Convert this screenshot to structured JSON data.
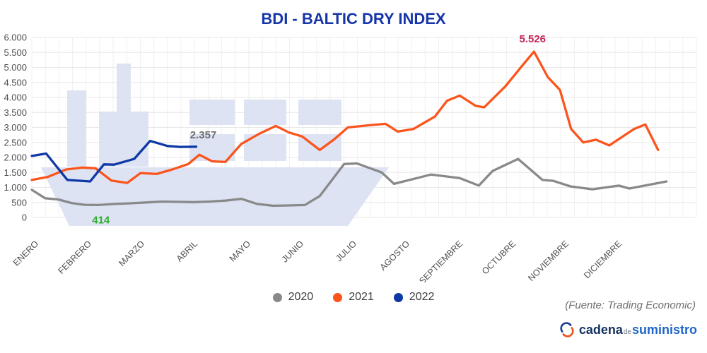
{
  "title": "BDI - BALTIC DRY INDEX",
  "source_note": "(Fuente: Trading Economic)",
  "logo": {
    "part1": "cadena",
    "part2": "de",
    "part3": "suministro"
  },
  "chart_data": {
    "type": "line",
    "title": "BDI - BALTIC DRY INDEX",
    "grid": true,
    "legend_position": "bottom",
    "x_axis": {
      "unit": "month",
      "labels": [
        "ENERO",
        "FEBRERO",
        "MARZO",
        "ABRIL",
        "MAYO",
        "JUNIO",
        "JULIO",
        "AGOSTO",
        "SEPTIEMBRE",
        "OCTUBRE",
        "NOVIEMBRE",
        "DICIEMBRE"
      ]
    },
    "y_axis": {
      "min": 0,
      "max": 6000,
      "step": 500,
      "tick_values": [
        0,
        500,
        1000,
        1500,
        2000,
        2500,
        3000,
        3500,
        4000,
        4500,
        5000,
        5500,
        6000
      ],
      "tick_labels": [
        "0",
        "500",
        "1.000",
        "1.500",
        "2.000",
        "2.500",
        "3.000",
        "3.500",
        "4.000",
        "4.500",
        "5.000",
        "5.500",
        "6.000"
      ]
    },
    "series": [
      {
        "name": "2020",
        "color": "#898989",
        "points": [
          [
            0.0,
            920
          ],
          [
            0.25,
            640
          ],
          [
            0.5,
            600
          ],
          [
            0.75,
            480
          ],
          [
            1.0,
            420
          ],
          [
            1.25,
            414
          ],
          [
            1.55,
            450
          ],
          [
            1.85,
            470
          ],
          [
            2.15,
            500
          ],
          [
            2.45,
            530
          ],
          [
            2.75,
            520
          ],
          [
            3.05,
            510
          ],
          [
            3.35,
            530
          ],
          [
            3.65,
            560
          ],
          [
            3.95,
            620
          ],
          [
            4.25,
            450
          ],
          [
            4.55,
            390
          ],
          [
            4.85,
            400
          ],
          [
            5.15,
            415
          ],
          [
            5.43,
            715
          ],
          [
            5.89,
            1780
          ],
          [
            6.13,
            1800
          ],
          [
            6.6,
            1500
          ],
          [
            6.83,
            1120
          ],
          [
            7.53,
            1430
          ],
          [
            8.07,
            1310
          ],
          [
            8.43,
            1060
          ],
          [
            8.69,
            1550
          ],
          [
            9.17,
            1950
          ],
          [
            9.63,
            1250
          ],
          [
            9.83,
            1220
          ],
          [
            10.16,
            1035
          ],
          [
            10.57,
            940
          ],
          [
            11.07,
            1060
          ],
          [
            11.27,
            965
          ],
          [
            11.97,
            1200
          ]
        ]
      },
      {
        "name": "2021",
        "color": "#fb541c",
        "points": [
          [
            0.0,
            1250
          ],
          [
            0.3,
            1350
          ],
          [
            0.65,
            1600
          ],
          [
            0.95,
            1660
          ],
          [
            1.2,
            1640
          ],
          [
            1.5,
            1230
          ],
          [
            1.8,
            1150
          ],
          [
            2.05,
            1480
          ],
          [
            2.35,
            1450
          ],
          [
            2.65,
            1600
          ],
          [
            2.95,
            1780
          ],
          [
            3.16,
            2090
          ],
          [
            3.4,
            1870
          ],
          [
            3.65,
            1850
          ],
          [
            3.95,
            2450
          ],
          [
            4.3,
            2800
          ],
          [
            4.6,
            3050
          ],
          [
            4.85,
            2830
          ],
          [
            5.1,
            2700
          ],
          [
            5.43,
            2250
          ],
          [
            5.7,
            2600
          ],
          [
            5.96,
            3000
          ],
          [
            6.4,
            3080
          ],
          [
            6.67,
            3120
          ],
          [
            6.9,
            2860
          ],
          [
            7.2,
            2950
          ],
          [
            7.6,
            3360
          ],
          [
            7.83,
            3890
          ],
          [
            8.07,
            4060
          ],
          [
            8.37,
            3720
          ],
          [
            8.53,
            3670
          ],
          [
            8.93,
            4370
          ],
          [
            9.24,
            5040
          ],
          [
            9.47,
            5526
          ],
          [
            9.73,
            4680
          ],
          [
            9.96,
            4250
          ],
          [
            10.17,
            2950
          ],
          [
            10.4,
            2500
          ],
          [
            10.64,
            2590
          ],
          [
            10.89,
            2400
          ],
          [
            11.36,
            2950
          ],
          [
            11.57,
            3100
          ],
          [
            11.81,
            2250
          ]
        ]
      },
      {
        "name": "2022",
        "color": "#0d38a5",
        "points": [
          [
            0.0,
            2050
          ],
          [
            0.27,
            2130
          ],
          [
            0.67,
            1250
          ],
          [
            1.1,
            1200
          ],
          [
            1.36,
            1770
          ],
          [
            1.55,
            1760
          ],
          [
            1.93,
            1950
          ],
          [
            2.23,
            2550
          ],
          [
            2.56,
            2380
          ],
          [
            2.8,
            2350
          ],
          [
            3.1,
            2357
          ]
        ]
      }
    ],
    "annotations": [
      {
        "text": "414",
        "color": "#2fae2f",
        "anchor": [
          1.25,
          414
        ],
        "offset": [
          4,
          26
        ]
      },
      {
        "text": "2.357",
        "color": "#6e6e6e",
        "anchor": [
          3.1,
          2357
        ],
        "offset": [
          10,
          -12
        ]
      },
      {
        "text": "5.526",
        "color": "#c22757",
        "anchor": [
          9.47,
          5526
        ],
        "offset": [
          -2,
          -13
        ]
      }
    ]
  }
}
